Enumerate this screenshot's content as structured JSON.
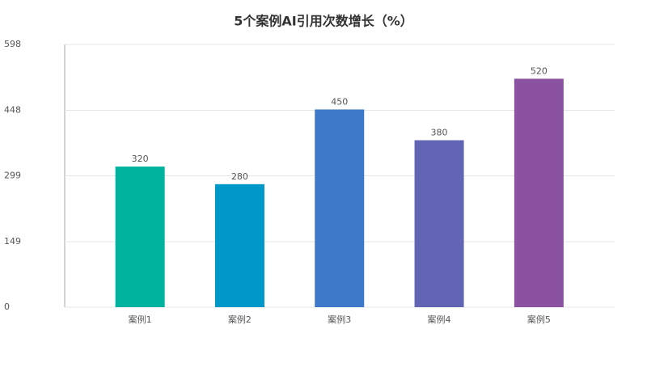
{
  "chart_data": {
    "type": "bar",
    "title": "5个案例AI引用次数增长（%）",
    "categories": [
      "案例1",
      "案例2",
      "案例3",
      "案例4",
      "案例5"
    ],
    "values": [
      320,
      280,
      450,
      380,
      520
    ],
    "colors": [
      "#00b39f",
      "#0098c9",
      "#3d78c9",
      "#6264b4",
      "#8a52a1"
    ],
    "ylim": [
      0,
      598
    ],
    "yticks": [
      0,
      149,
      299,
      448,
      598
    ],
    "grid": true
  }
}
